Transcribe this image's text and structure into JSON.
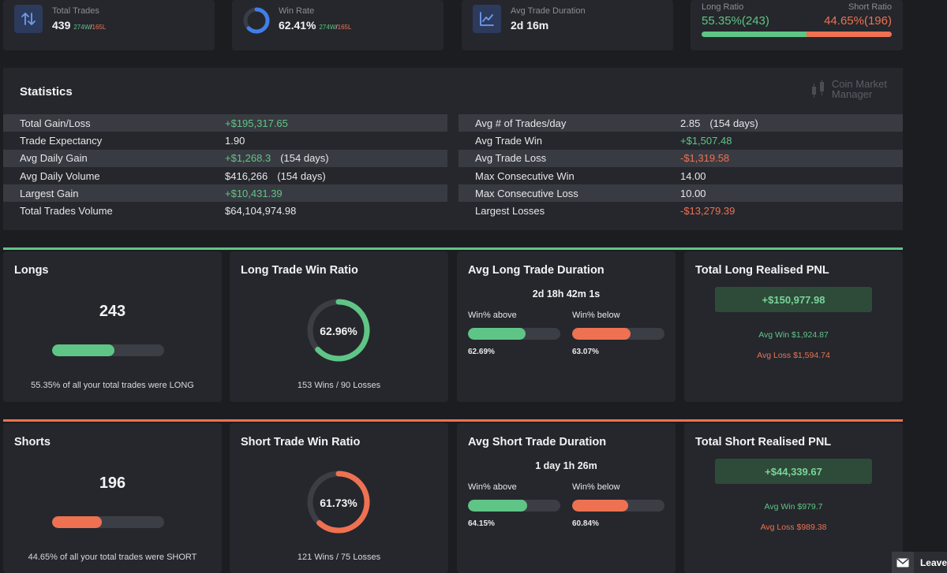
{
  "kpis": {
    "total_trades": {
      "label": "Total Trades",
      "value": "439",
      "wins": "274W",
      "losses": "165L"
    },
    "win_rate": {
      "label": "Win Rate",
      "value": "62.41%",
      "wins": "274W",
      "losses": "165L",
      "fraction": 0.6241
    },
    "avg_duration": {
      "label": "Avg Trade Duration",
      "value": "2d 16m"
    },
    "ratio": {
      "long_label": "Long Ratio",
      "short_label": "Short Ratio",
      "long_value": "55.35%(243)",
      "short_value": "44.65%(196)",
      "long_fraction": 0.5535
    }
  },
  "statistics": {
    "title": "Statistics",
    "logo_line1": "Coin Market",
    "logo_line2": "Manager",
    "left": [
      {
        "label": "Total Gain/Loss",
        "value": "+$195,317.65",
        "extra": "",
        "color": "green"
      },
      {
        "label": "Trade Expectancy",
        "value": "1.90",
        "extra": "",
        "color": "white"
      },
      {
        "label": "Avg Daily Gain",
        "value": "+$1,268.3",
        "extra": "(154 days)",
        "color": "green"
      },
      {
        "label": "Avg Daily Volume",
        "value": "$416,266",
        "extra": "(154 days)",
        "color": "white"
      },
      {
        "label": "Largest Gain",
        "value": "+$10,431.39",
        "extra": "",
        "color": "green"
      },
      {
        "label": "Total Trades Volume",
        "value": "$64,104,974.98",
        "extra": "",
        "color": "white"
      }
    ],
    "right": [
      {
        "label": "Avg # of Trades/day",
        "value": "2.85",
        "extra": "(154 days)",
        "color": "white"
      },
      {
        "label": "Avg Trade Win",
        "value": "+$1,507.48",
        "extra": "",
        "color": "green"
      },
      {
        "label": "Avg Trade Loss",
        "value": "-$1,319.58",
        "extra": "",
        "color": "red"
      },
      {
        "label": "Max Consecutive Win",
        "value": "14.00",
        "extra": "",
        "color": "white"
      },
      {
        "label": "Max Consecutive Loss",
        "value": "10.00",
        "extra": "",
        "color": "white"
      },
      {
        "label": "Largest Losses",
        "value": "-$13,279.39",
        "extra": "",
        "color": "red"
      }
    ]
  },
  "longs": {
    "title": "Longs",
    "count": "243",
    "fraction": 0.5535,
    "caption": "55.35% of all your total trades were LONG",
    "win_ratio_title": "Long Trade Win Ratio",
    "win_ratio": "62.96%",
    "win_ratio_fraction": 0.6296,
    "wins_losses": "153 Wins / 90 Losses",
    "duration_title": "Avg Long Trade Duration",
    "duration": "2d 18h 42m 1s",
    "above_label": "Win% above",
    "below_label": "Win% below",
    "above_pct": "62.69%",
    "below_pct": "63.07%",
    "above_fraction": 0.6269,
    "below_fraction": 0.6307,
    "pnl_title": "Total Long Realised PNL",
    "pnl_value": "+$150,977.98",
    "avg_win": "Avg Win $1,924.87",
    "avg_loss": "Avg Loss $1,594.74"
  },
  "shorts": {
    "title": "Shorts",
    "count": "196",
    "fraction": 0.4465,
    "caption": "44.65% of all your total trades were SHORT",
    "win_ratio_title": "Short Trade Win Ratio",
    "win_ratio": "61.73%",
    "win_ratio_fraction": 0.6173,
    "wins_losses": "121 Wins / 75 Losses",
    "duration_title": "Avg Short Trade Duration",
    "duration": "1 day 1h 26m",
    "above_label": "Win% above",
    "below_label": "Win% below",
    "above_pct": "64.15%",
    "below_pct": "60.84%",
    "above_fraction": 0.6415,
    "below_fraction": 0.6084,
    "pnl_title": "Total Short Realised PNL",
    "pnl_value": "+$44,339.67",
    "avg_win": "Avg Win $979.7",
    "avg_loss": "Avg Loss $989.38"
  },
  "chat": {
    "label": "Leave"
  },
  "colors": {
    "green": "#5fc586",
    "red": "#ee7152",
    "track": "#3c3e45",
    "blue": "#3f7fe8"
  }
}
